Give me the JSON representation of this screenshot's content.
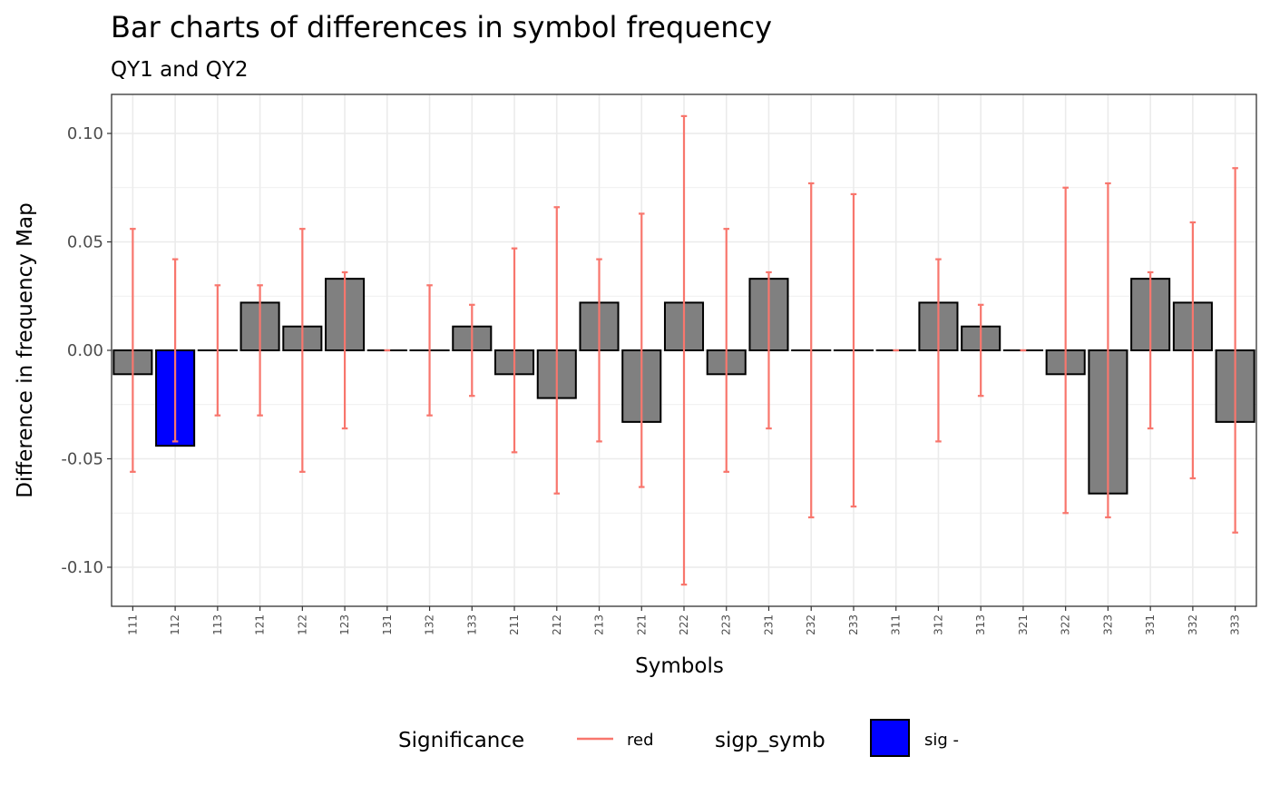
{
  "chart_data": {
    "type": "bar",
    "title": "Bar charts of differences in symbol frequency",
    "subtitle": "QY1 and QY2",
    "xlabel": "Symbols",
    "ylabel": "Difference in frequency Map",
    "ylim": [
      -0.118,
      0.118
    ],
    "yticks": [
      -0.1,
      -0.05,
      0.0,
      0.05,
      0.1
    ],
    "ytick_labels": [
      "-0.10",
      "-0.05",
      "0.00",
      "0.05",
      "0.10"
    ],
    "grid": true,
    "categories": [
      "111",
      "112",
      "113",
      "121",
      "122",
      "123",
      "131",
      "132",
      "133",
      "211",
      "212",
      "213",
      "221",
      "222",
      "223",
      "231",
      "232",
      "233",
      "311",
      "312",
      "313",
      "321",
      "322",
      "323",
      "331",
      "332",
      "333"
    ],
    "values": [
      -0.011,
      -0.044,
      0.0,
      0.022,
      0.011,
      0.033,
      0.0,
      0.0,
      0.011,
      -0.011,
      -0.022,
      0.022,
      -0.033,
      0.022,
      -0.011,
      0.033,
      0.0,
      0.0,
      0.0,
      0.022,
      0.011,
      0.0,
      -0.011,
      -0.066,
      0.033,
      0.022,
      -0.033
    ],
    "error_lower": [
      -0.056,
      -0.042,
      -0.03,
      -0.03,
      -0.056,
      -0.036,
      0.0,
      -0.03,
      -0.021,
      -0.047,
      -0.066,
      -0.042,
      -0.063,
      -0.108,
      -0.056,
      -0.036,
      -0.077,
      -0.072,
      0.0,
      -0.042,
      -0.021,
      0.0,
      -0.075,
      -0.077,
      -0.036,
      -0.059,
      -0.084
    ],
    "error_upper": [
      0.056,
      0.042,
      0.03,
      0.03,
      0.056,
      0.036,
      0.0,
      0.03,
      0.021,
      0.047,
      0.066,
      0.042,
      0.063,
      0.108,
      0.056,
      0.036,
      0.077,
      0.072,
      0.0,
      0.042,
      0.021,
      0.0,
      0.075,
      0.077,
      0.036,
      0.059,
      0.084
    ],
    "significant": [
      "",
      "sig -",
      "",
      "",
      "",
      "",
      "",
      "",
      "",
      "",
      "",
      "",
      "",
      "",
      "",
      "",
      "",
      "",
      "",
      "",
      "",
      "",
      "",
      "",
      "",
      "",
      ""
    ],
    "colors": {
      "bar_default": "#808080",
      "bar_sig_minus": "#0000ff",
      "errorbar": "#f8766d",
      "bar_border": "#000000",
      "grid": "#ebebeb",
      "panel_border": "#333333"
    },
    "legend": {
      "position": "bottom",
      "groups": [
        {
          "title": "Significance",
          "key": "line",
          "label": "red"
        },
        {
          "title": "sigp_symb",
          "key": "fill",
          "label": "sig -"
        }
      ]
    }
  }
}
